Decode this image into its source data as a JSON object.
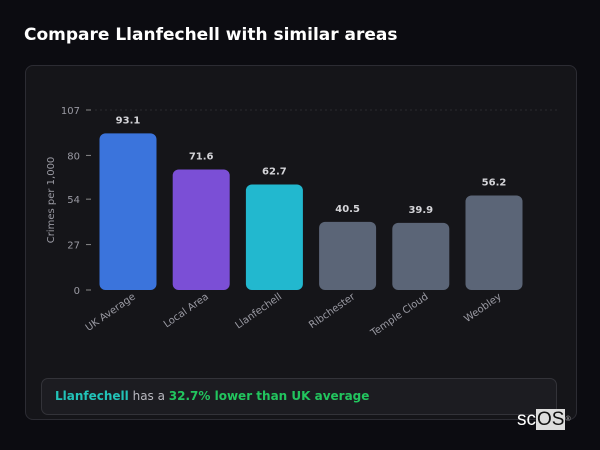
{
  "title": "Compare Llanfechell with similar areas",
  "chart_data": {
    "type": "bar",
    "categories": [
      "UK Average",
      "Local Area",
      "Llanfechell",
      "Ribchester",
      "Temple Cloud",
      "Weobley"
    ],
    "values": [
      93.1,
      71.6,
      62.7,
      40.5,
      39.9,
      56.2
    ],
    "value_labels": [
      "93.1",
      "71.6",
      "62.7",
      "40.5",
      "39.9",
      "56.2"
    ],
    "colors": [
      "#3b74dc",
      "#7b4fd6",
      "#22b8cf",
      "#5b6577",
      "#5b6577",
      "#5b6577"
    ],
    "ylabel": "Crimes per 1,000",
    "xlabel": "",
    "yticks": [
      0,
      27,
      54,
      80,
      107
    ],
    "ylim": [
      0,
      107
    ],
    "grid": false
  },
  "callout": {
    "place": "Llanfechell",
    "mid": " has a ",
    "highlight": "32.7% lower than UK average"
  },
  "logo": {
    "text_a": "sc",
    "text_b": "OS",
    "mark": "®"
  }
}
